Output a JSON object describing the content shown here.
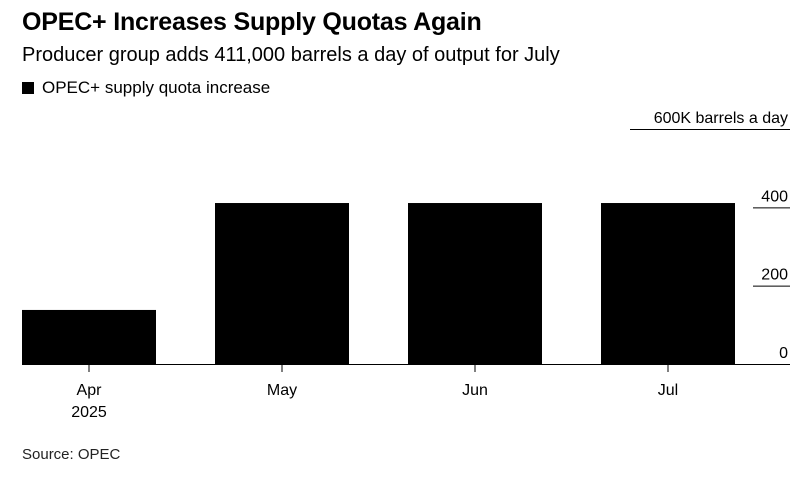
{
  "title": "OPEC+ Increases Supply Quotas Again",
  "subtitle": "Producer group adds 411,000 barrels a day of output for July",
  "source": "Source: OPEC",
  "chart_data": {
    "type": "bar",
    "categories": [
      "Apr",
      "May",
      "Jun",
      "Jul"
    ],
    "category_sublabels": [
      "2025",
      "",
      "",
      ""
    ],
    "series": [
      {
        "name": "OPEC+ supply quota increase",
        "values": [
          138,
          411,
          411,
          411
        ],
        "color": "#000000"
      }
    ],
    "ylabel": "",
    "y_unit_label": "600K barrels a day",
    "yticks": [
      0,
      200,
      400
    ],
    "ylim": [
      0,
      600
    ],
    "y_axis_position": "right",
    "legend_position": "top-left",
    "grid": false
  }
}
